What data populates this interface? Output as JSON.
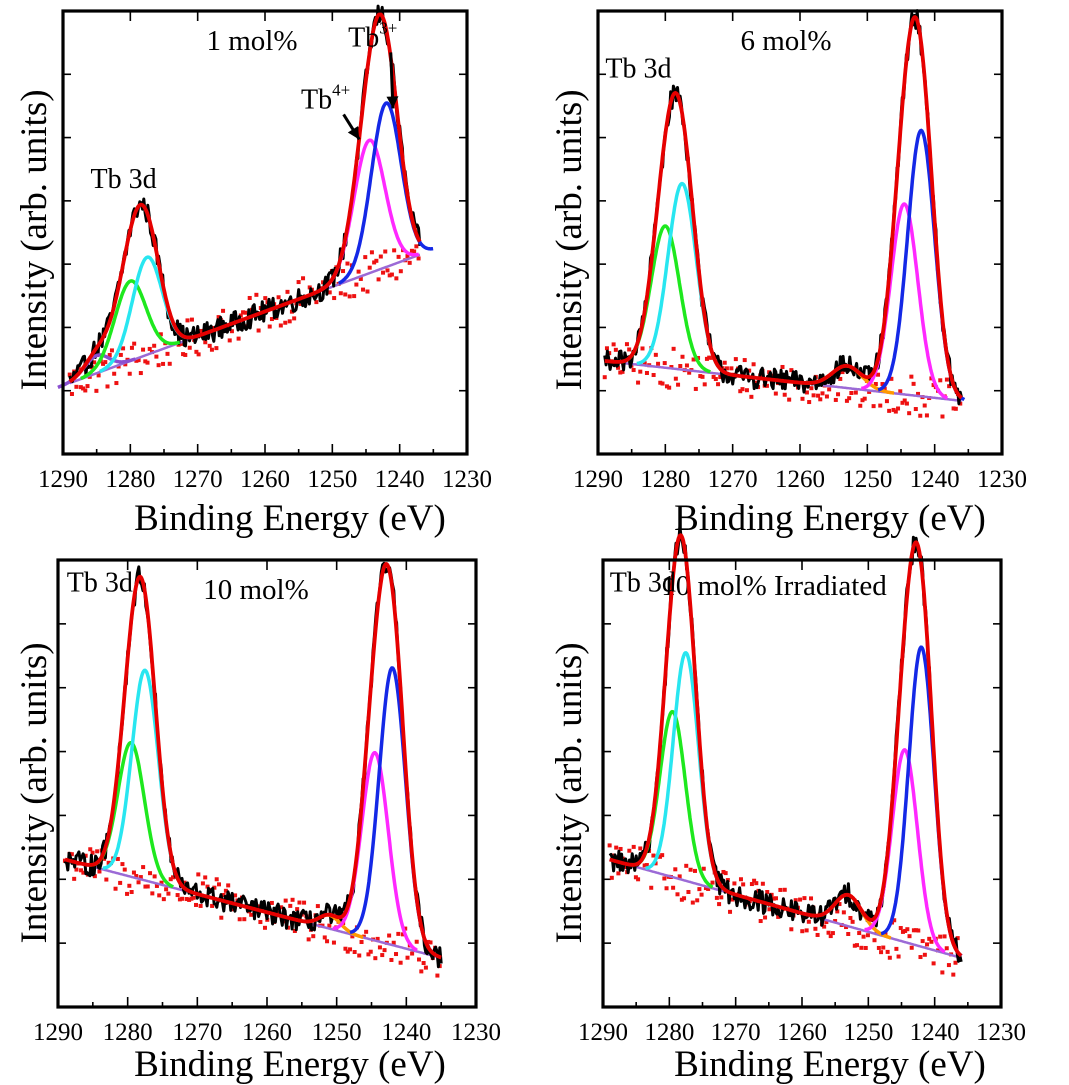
{
  "chart_data": [
    {
      "type": "line",
      "title": "1 mol%",
      "xlabel": "Binding Energy (eV)",
      "ylabel": "Intensity (arb. units)",
      "xlim": [
        1290,
        1230
      ],
      "x_reversed": true,
      "x_ticks": [
        "1290",
        "1280",
        "1270",
        "1260",
        "1250",
        "1240",
        "1230"
      ],
      "y_tick_labels_shown": false,
      "annotations": [
        {
          "text": "Tb 3d",
          "x": 1281,
          "y": 0.6
        },
        {
          "text": "Tb",
          "sup": "3+",
          "x": 1244,
          "y": 0.92,
          "arrow_to": [
            1241,
            0.78
          ]
        },
        {
          "text": "Tb",
          "sup": "4+",
          "x": 1251,
          "y": 0.78,
          "arrow_to": [
            1246,
            0.71
          ]
        }
      ],
      "baseline": {
        "x": [
          1289,
          1237
        ],
        "y": [
          0.16,
          0.45
        ]
      },
      "components": [
        {
          "color": "#8a4fd0",
          "role": "small-peak",
          "center": 1285,
          "height": 0.04,
          "sigma": 1.8
        },
        {
          "color": "#1ee81e",
          "role": "Tb4+ 3d3/2",
          "center": 1280,
          "height": 0.18,
          "sigma": 2.3
        },
        {
          "color": "#28e6f0",
          "role": "Tb3+ 3d3/2",
          "center": 1277.5,
          "height": 0.22,
          "sigma": 2.2
        },
        {
          "color": "#ff28ff",
          "role": "Tb4+ 3d5/2",
          "center": 1244.5,
          "height": 0.3,
          "sigma": 2.3
        },
        {
          "color": "#1428e6",
          "role": "Tb3+ 3d5/2",
          "center": 1242,
          "height": 0.37,
          "sigma": 2.2
        }
      ],
      "envelope_color": "#e60000",
      "raw_color": "#000000",
      "background_points_color": "#ee1111",
      "peaks": {
        "tb3d_3_2": {
          "x": 1279,
          "y": 0.54
        },
        "tb3d_5_2": {
          "x": 1242,
          "y": 0.9
        }
      }
    },
    {
      "type": "line",
      "title": "6 mol%",
      "xlabel": "Binding Energy (eV)",
      "ylabel": "Intensity (arb. units)",
      "xlim": [
        1290,
        1230
      ],
      "x_reversed": true,
      "x_ticks": [
        "1290",
        "1280",
        "1270",
        "1260",
        "1250",
        "1240",
        "1230"
      ],
      "y_tick_labels_shown": false,
      "annotations": [
        {
          "text": "Tb 3d",
          "x": 1284,
          "y": 0.85
        }
      ],
      "baseline": {
        "x": [
          1289,
          1236
        ],
        "y": [
          0.21,
          0.12
        ]
      },
      "components": [
        {
          "color": "#1ee81e",
          "role": "Tb4+ 3d3/2",
          "center": 1280,
          "height": 0.32,
          "sigma": 2.1
        },
        {
          "color": "#28e6f0",
          "role": "Tb3+ 3d3/2",
          "center": 1277.5,
          "height": 0.42,
          "sigma": 2.1
        },
        {
          "color": "#ff9900",
          "role": "satellite",
          "center": 1253,
          "height": 0.05,
          "sigma": 2.2
        },
        {
          "color": "#ff28ff",
          "role": "Tb4+ 3d5/2",
          "center": 1244.5,
          "height": 0.43,
          "sigma": 2.0
        },
        {
          "color": "#1428e6",
          "role": "Tb3+ 3d5/2",
          "center": 1242,
          "height": 0.6,
          "sigma": 2.0
        }
      ],
      "envelope_color": "#e60000",
      "raw_color": "#000000",
      "background_points_color": "#ee1111",
      "peaks": {
        "tb3d_3_2": {
          "x": 1278,
          "y": 0.77
        },
        "tb3d_5_2": {
          "x": 1243,
          "y": 0.93
        }
      }
    },
    {
      "type": "line",
      "title": "10 mol%",
      "xlabel": "Binding Energy (eV)",
      "ylabel": "Intensity (arb. units)",
      "xlim": [
        1290,
        1230
      ],
      "x_reversed": true,
      "x_ticks": [
        "1290",
        "1280",
        "1270",
        "1260",
        "1250",
        "1240",
        "1230"
      ],
      "y_tick_labels_shown": false,
      "annotations": [
        {
          "text": "Tb 3d",
          "x": 1284,
          "y": 0.93
        }
      ],
      "baseline": {
        "x": [
          1289,
          1235
        ],
        "y": [
          0.33,
          0.11
        ]
      },
      "components": [
        {
          "color": "#1ee81e",
          "role": "Tb4+ 3d3/2",
          "center": 1279.5,
          "height": 0.3,
          "sigma": 1.9
        },
        {
          "color": "#28e6f0",
          "role": "Tb3+ 3d3/2",
          "center": 1277.5,
          "height": 0.47,
          "sigma": 1.9
        },
        {
          "color": "#ff9900",
          "role": "satellite",
          "center": 1251,
          "height": 0.03,
          "sigma": 1.5
        },
        {
          "color": "#ff28ff",
          "role": "Tb4+ 3d5/2",
          "center": 1244.5,
          "height": 0.42,
          "sigma": 1.9
        },
        {
          "color": "#1428e6",
          "role": "Tb3+ 3d5/2",
          "center": 1242,
          "height": 0.62,
          "sigma": 1.9
        }
      ],
      "envelope_color": "#e60000",
      "raw_color": "#000000",
      "background_points_color": "#ee1111",
      "peaks": {
        "tb3d_3_2": {
          "x": 1278,
          "y": 0.92
        },
        "tb3d_5_2": {
          "x": 1242.5,
          "y": 0.93
        }
      }
    },
    {
      "type": "line",
      "title": "10 mol% Irradiated",
      "xlabel": "Binding Energy (eV)",
      "ylabel": "Intensity (arb. units)",
      "xlim": [
        1290,
        1230
      ],
      "x_reversed": true,
      "x_ticks": [
        "1290",
        "1280",
        "1270",
        "1260",
        "1250",
        "1240",
        "1230"
      ],
      "y_tick_labels_shown": false,
      "annotations": [
        {
          "text": "Tb 3d",
          "x": 1284,
          "y": 0.93
        }
      ],
      "baseline": {
        "x": [
          1289,
          1236
        ],
        "y": [
          0.33,
          0.11
        ]
      },
      "components": [
        {
          "color": "#1ee81e",
          "role": "Tb4+ 3d3/2",
          "center": 1279.5,
          "height": 0.37,
          "sigma": 1.9
        },
        {
          "color": "#28e6f0",
          "role": "Tb3+ 3d3/2",
          "center": 1277.5,
          "height": 0.51,
          "sigma": 1.9
        },
        {
          "color": "#ff9900",
          "role": "satellite",
          "center": 1253,
          "height": 0.07,
          "sigma": 2.0
        },
        {
          "color": "#ff28ff",
          "role": "Tb4+ 3d5/2",
          "center": 1244.5,
          "height": 0.43,
          "sigma": 1.9
        },
        {
          "color": "#1428e6",
          "role": "Tb3+ 3d5/2",
          "center": 1242,
          "height": 0.67,
          "sigma": 1.9
        }
      ],
      "envelope_color": "#e60000",
      "raw_color": "#000000",
      "background_points_color": "#ee1111",
      "peaks": {
        "tb3d_3_2": {
          "x": 1278,
          "y": 0.91
        },
        "tb3d_5_2": {
          "x": 1243,
          "y": 0.95
        }
      }
    }
  ]
}
